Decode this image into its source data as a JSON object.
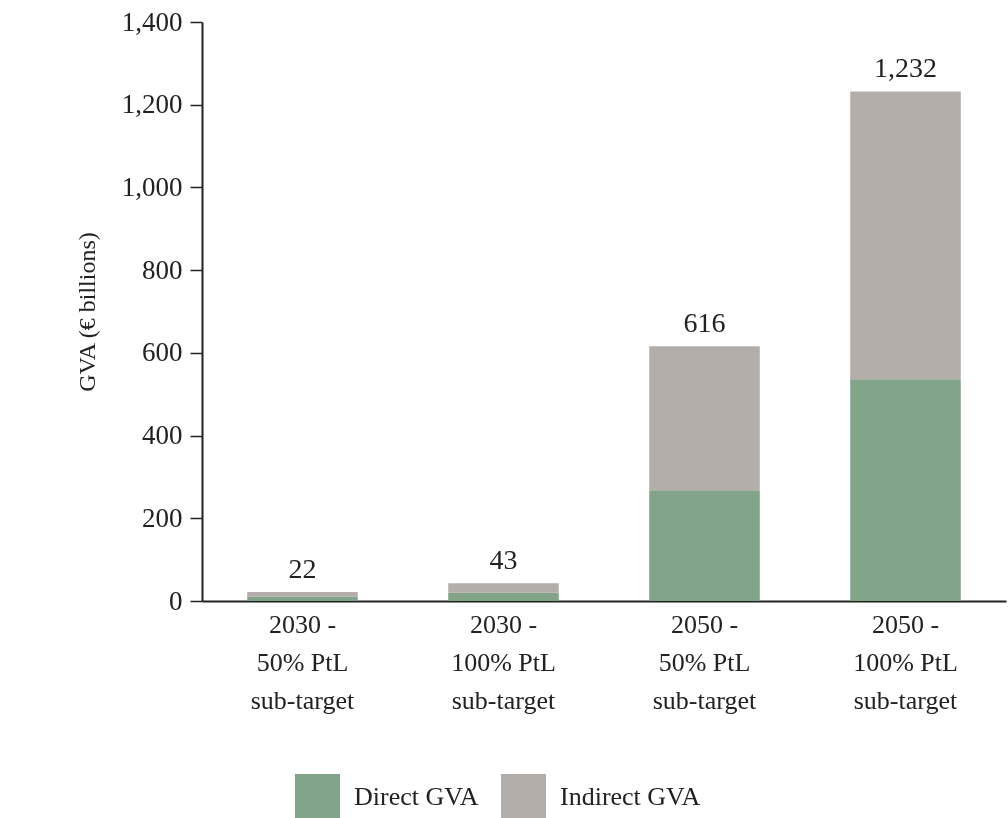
{
  "chart_data": {
    "type": "bar",
    "stacked": true,
    "categories": [
      "2030 - 50% PtL sub-target",
      "2030 - 100% PtL sub-target",
      "2050 - 50% PtL sub-target",
      "2050 - 100% PtL sub-target"
    ],
    "series": [
      {
        "name": "Direct GVA",
        "color": "#82a58a",
        "values": [
          10,
          20,
          268,
          536
        ]
      },
      {
        "name": "Indirect GVA",
        "color": "#b3aeaa",
        "values": [
          12,
          23,
          348,
          696
        ]
      }
    ],
    "totals": [
      "22",
      "43",
      "616",
      "1,232"
    ],
    "ylabel": "GVA (€ billions)",
    "ylim": [
      0,
      1400
    ],
    "yticks": [
      0,
      200,
      400,
      600,
      800,
      {
        "value": 1000,
        "label": "1,000"
      },
      {
        "value": 1200,
        "label": "1,200"
      },
      {
        "value": 1400,
        "label": "1,400"
      }
    ],
    "grid": false,
    "legend": "bottom"
  }
}
